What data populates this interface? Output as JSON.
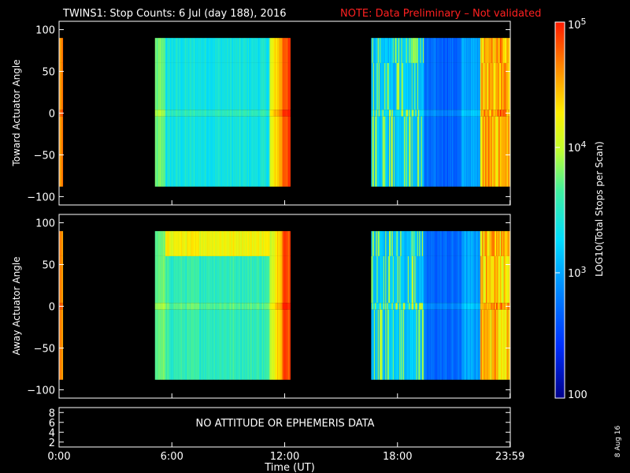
{
  "title": "TWINS1: Stop Counts:  6 Jul (day 188), 2016",
  "note": "NOTE: Data Preliminary – Not validated",
  "no_data_message": "NO ATTITUDE OR EPHEMERIS DATA",
  "stamp": "8 Aug 16",
  "colorbar": {
    "label": "LOG10(Total Stops per Scan)",
    "tick_labels": [
      "10^5",
      "10^4",
      "10^3",
      "100"
    ],
    "ticks": [
      100000,
      10000,
      1000,
      100
    ],
    "range": [
      100,
      100000
    ],
    "scale": "log"
  },
  "colors": {
    "background": "#000000",
    "axes": "#ffffff",
    "note": "#ff2020"
  },
  "chart_data": [
    {
      "type": "heatmap",
      "ylabel": "Toward Actuator Angle",
      "xlabel": "",
      "xlim": [
        0,
        24
      ],
      "ylim": [
        -110,
        110
      ],
      "y_tick_labels": [
        "100",
        "50",
        "0",
        "−50",
        "−100"
      ],
      "y_ticks": [
        100,
        50,
        0,
        -50,
        -100
      ],
      "angle_range": [
        -88,
        90
      ],
      "data_intervals_hours": [
        [
          0.0,
          0.2
        ],
        [
          5.1,
          12.3
        ],
        [
          16.6,
          24.0
        ]
      ],
      "x_tick_labels": []
    },
    {
      "type": "heatmap",
      "ylabel": "Away Actuator Angle",
      "xlabel": "",
      "xlim": [
        0,
        24
      ],
      "ylim": [
        -110,
        110
      ],
      "y_tick_labels": [
        "100",
        "50",
        "0",
        "−50",
        "−100"
      ],
      "y_ticks": [
        100,
        50,
        0,
        -50,
        -100
      ],
      "angle_range": [
        -88,
        90
      ],
      "data_intervals_hours": [
        [
          0.0,
          0.2
        ],
        [
          5.1,
          12.3
        ],
        [
          16.6,
          24.0
        ]
      ],
      "x_tick_labels": []
    },
    {
      "type": "line",
      "ylabel": "",
      "xlabel": "Time (UT)",
      "xlim": [
        0,
        24
      ],
      "ylim": [
        1,
        9
      ],
      "y_tick_labels": [
        "8",
        "6",
        "4",
        "2"
      ],
      "y_ticks": [
        8,
        6,
        4,
        2
      ],
      "x_tick_labels": [
        "0:00",
        "6:00",
        "12:00",
        "18:00",
        "23:59"
      ],
      "x_ticks": [
        0,
        6,
        12,
        18,
        23.983
      ]
    }
  ]
}
